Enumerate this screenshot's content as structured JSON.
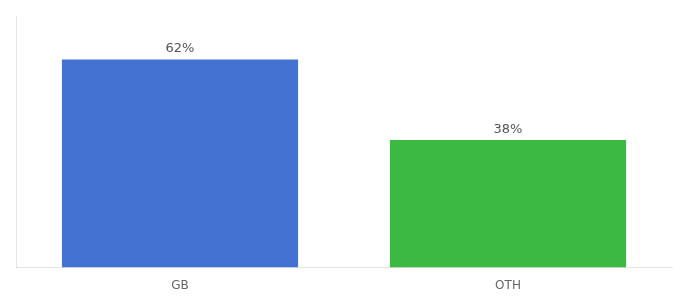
{
  "chart_data": {
    "type": "bar",
    "categories": [
      "GB",
      "OTH"
    ],
    "values": [
      62,
      38
    ],
    "value_labels": [
      "62%",
      "38%"
    ],
    "colors": [
      "#4472D3",
      "#3CB943"
    ],
    "ylim": [
      0,
      75
    ],
    "grid": false,
    "data_labels": true,
    "tick_labels": "x"
  }
}
